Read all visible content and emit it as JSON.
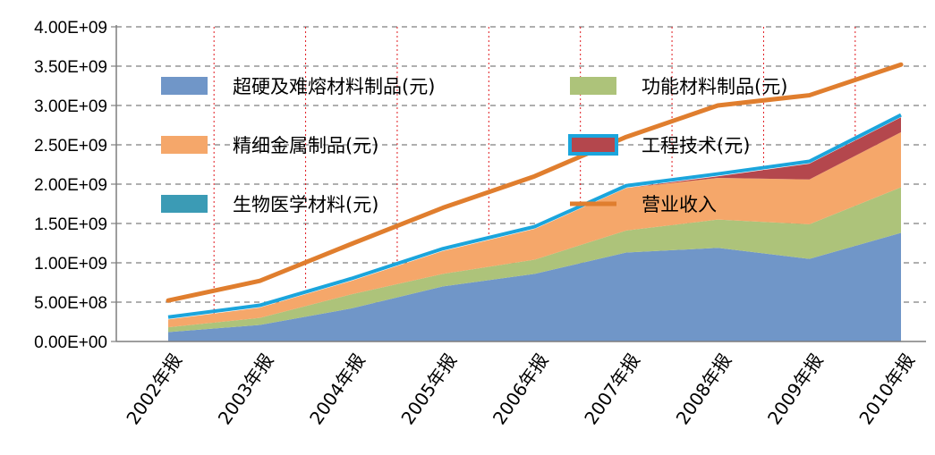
{
  "chart_data": {
    "type": "area",
    "categories": [
      "2002年报",
      "2003年报",
      "2004年报",
      "2005年报",
      "2006年报",
      "2007年报",
      "2008年报",
      "2009年报",
      "2010年报"
    ],
    "yticks": [
      "0.00E+00",
      "5.00E+08",
      "1.00E+09",
      "1.50E+09",
      "2.00E+09",
      "2.50E+09",
      "3.00E+09",
      "3.50E+09",
      "4.00E+09"
    ],
    "ylim": [
      0,
      4000000000
    ],
    "stacked": true,
    "grid": "horizontal dashed, vertical dotted red",
    "series": [
      {
        "name": "超硬及难熔材料制品(元)",
        "kind": "area",
        "color": "#7096c8",
        "values": [
          120000000,
          210000000,
          420000000,
          700000000,
          860000000,
          1130000000,
          1190000000,
          1050000000,
          1380000000
        ]
      },
      {
        "name": "功能材料制品(元)",
        "kind": "area",
        "color": "#adc37a",
        "values": [
          60000000,
          90000000,
          180000000,
          160000000,
          180000000,
          280000000,
          360000000,
          440000000,
          580000000
        ]
      },
      {
        "name": "精细金属制品(元)",
        "kind": "area",
        "color": "#f5a76a",
        "values": [
          100000000,
          130000000,
          170000000,
          290000000,
          390000000,
          540000000,
          530000000,
          570000000,
          700000000
        ]
      },
      {
        "name": "工程技术(元)",
        "kind": "area",
        "color": "#b4474d",
        "values": [
          0,
          0,
          0,
          0,
          0,
          0,
          20000000,
          200000000,
          190000000
        ]
      },
      {
        "name": "生物医学材料(元)",
        "kind": "area",
        "color": "#1ba5dc",
        "values": [
          30000000,
          30000000,
          30000000,
          30000000,
          30000000,
          30000000,
          30000000,
          30000000,
          30000000
        ]
      },
      {
        "name": "营业收入",
        "kind": "line",
        "color": "#e07e2e",
        "values": [
          520000000,
          770000000,
          1240000000,
          1700000000,
          2100000000,
          2600000000,
          3000000000,
          3130000000,
          3520000000
        ]
      }
    ],
    "legend": [
      {
        "label": "超硬及难熔材料制品(元)",
        "swatch": "#7096c8",
        "type": "area"
      },
      {
        "label": "功能材料制品(元)",
        "swatch": "#adc37a",
        "type": "area"
      },
      {
        "label": "精细金属制品(元)",
        "swatch": "#f5a76a",
        "type": "area"
      },
      {
        "label": "工程技术(元)",
        "swatch": "#b4474d",
        "border": "#1ba5dc",
        "type": "area"
      },
      {
        "label": "生物医学材料(元)",
        "swatch": "#3b9bb5",
        "type": "area"
      },
      {
        "label": "营业收入",
        "swatch": "#e07e2e",
        "type": "line"
      }
    ]
  }
}
